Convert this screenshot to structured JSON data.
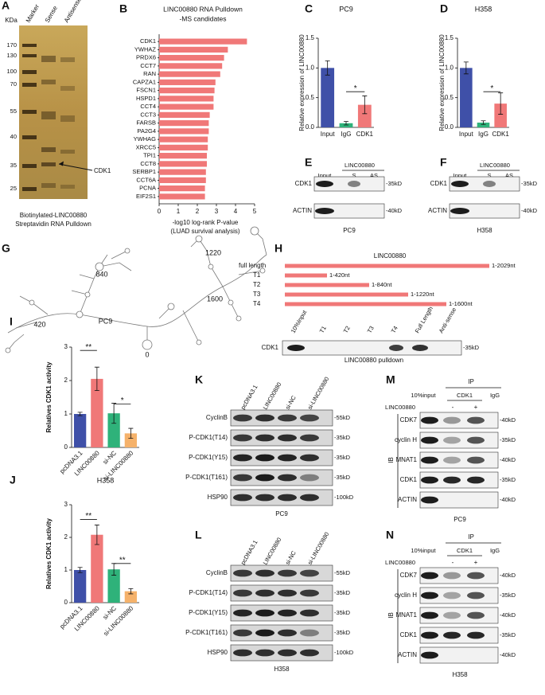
{
  "chart_data": [
    {
      "letter": "B",
      "type": "hbar",
      "title": "LINC00880 RNA Pulldown",
      "subtitle": "-MS candidates",
      "categories": [
        "CDK1",
        "YWHAZ",
        "PRDX6",
        "CCT7",
        "RAN",
        "CAPZA1",
        "FSCN1",
        "HSPD1",
        "CCT4",
        "CCT3",
        "FARSB",
        "PA2G4",
        "YWHAG",
        "XRCC5",
        "TPI1",
        "CCT8",
        "SERBP1",
        "CCT6A",
        "PCNA",
        "EIF2S1"
      ],
      "values": [
        4.6,
        3.6,
        3.4,
        3.3,
        3.2,
        2.95,
        2.9,
        2.85,
        2.85,
        2.65,
        2.6,
        2.6,
        2.55,
        2.55,
        2.5,
        2.5,
        2.45,
        2.45,
        2.4,
        2.4
      ],
      "color": "#f07878",
      "xlim": [
        0,
        5
      ],
      "xticks": [
        0,
        1,
        2,
        3,
        4,
        5
      ],
      "xlabel": "-log10 log-rank P-value",
      "xlabel_note": "(LUAD survival analysis)"
    },
    {
      "letter": "C",
      "type": "bar",
      "title": "PC9",
      "ylabel": "Relative expression of LINC00880",
      "categories": [
        "Input",
        "IgG",
        "CDK1"
      ],
      "values": [
        1.0,
        0.07,
        0.38
      ],
      "errors": [
        0.12,
        0.03,
        0.15
      ],
      "colors": [
        "#3f50a8",
        "#2fb27a",
        "#f07878"
      ],
      "ylim": [
        0,
        1.5
      ],
      "yticks": [
        {
          "value": 0,
          "label": "0.0"
        },
        0.5,
        {
          "value": 1,
          "label": "1.0"
        },
        1.5
      ],
      "annotations": [
        "*"
      ]
    },
    {
      "letter": "D",
      "type": "bar",
      "title": "H358",
      "ylabel": "Relative expression of LINC00880",
      "categories": [
        "Input",
        "IgG",
        "CDK1"
      ],
      "values": [
        1.0,
        0.08,
        0.4
      ],
      "errors": [
        0.1,
        0.03,
        0.18
      ],
      "colors": [
        "#3f50a8",
        "#2fb27a",
        "#f07878"
      ],
      "ylim": [
        0,
        1.5
      ],
      "yticks": [
        {
          "value": 0,
          "label": "0.0"
        },
        0.5,
        {
          "value": 1,
          "label": "1.0"
        },
        1.5
      ],
      "annotations": [
        "*"
      ]
    },
    {
      "letter": "I",
      "type": "bar",
      "title": "PC9",
      "ylabel": "Relatives CDK1 activity",
      "categories": [
        "pcDNA3.1",
        "LINC00880",
        "si-NC",
        "si-LINC00880"
      ],
      "values": [
        1.0,
        2.05,
        1.02,
        0.42
      ],
      "errors": [
        0.05,
        0.35,
        0.3,
        0.15
      ],
      "colors": [
        "#3f50a8",
        "#f07878",
        "#2fb27a",
        "#f5b26b"
      ],
      "ylim": [
        0,
        3
      ],
      "yticks": [
        0,
        1,
        2,
        3
      ],
      "annotations": [
        "**",
        "*"
      ]
    },
    {
      "letter": "J",
      "type": "bar",
      "title": "H358",
      "ylabel": "Relatives CDK1 activity",
      "categories": [
        "pcDNA3.1",
        "LINC00880",
        "si-NC",
        "si-LINC00880"
      ],
      "values": [
        1.0,
        2.08,
        1.02,
        0.35
      ],
      "errors": [
        0.08,
        0.3,
        0.18,
        0.08
      ],
      "colors": [
        "#3f50a8",
        "#f07878",
        "#2fb27a",
        "#f5b26b"
      ],
      "ylim": [
        0,
        3
      ],
      "yticks": [
        0,
        1,
        2,
        3
      ],
      "annotations": [
        "**",
        "**"
      ]
    }
  ],
  "panels": {
    "A": {
      "letter": "A",
      "unit": "KDa",
      "lanes": [
        "Marker",
        "Sense",
        "Antisense"
      ],
      "ladder": [
        170,
        130,
        100,
        70,
        55,
        40,
        35,
        25
      ],
      "arrow_label": "CDK1",
      "caption": [
        "Biotinylated-LINC00880",
        "Streptavidin RNA Pulldown"
      ]
    },
    "E": {
      "letter": "E",
      "group": "LINC00880",
      "lanes": [
        "Input",
        "S",
        "AS"
      ],
      "rows": [
        "CDK1",
        "ACTIN"
      ],
      "sizes": [
        "-35kD",
        "-40kD"
      ],
      "cell": "PC9"
    },
    "F": {
      "letter": "F",
      "group": "LINC00880",
      "lanes": [
        "Input",
        "S",
        "AS"
      ],
      "rows": [
        "CDK1",
        "ACTIN"
      ],
      "sizes": [
        "-35kD",
        "-40kD"
      ],
      "cell": "H358"
    },
    "G": {
      "letter": "G",
      "positions": [
        840,
        1220,
        1600,
        420,
        0
      ]
    },
    "H": {
      "letter": "H",
      "title": "LINC00880",
      "constructs": [
        {
          "name": "full length",
          "range": "1-2029nt"
        },
        {
          "name": "T1",
          "range": "1-420nt"
        },
        {
          "name": "T2",
          "range": "1-840nt"
        },
        {
          "name": "T3",
          "range": "1-1220nt"
        },
        {
          "name": "T4",
          "range": "1-1600nt"
        }
      ],
      "lanes": [
        "10%Input",
        "T1",
        "T2",
        "T3",
        "T4",
        "Full Length",
        "Anti-sense"
      ],
      "row": "CDK1",
      "size": "-35kD",
      "caption": "LINC00880 pulldown"
    },
    "K": {
      "letter": "K",
      "lanes": [
        "pcDNA3.1",
        "LINC00880",
        "si-NC",
        "si-LINC00880"
      ],
      "rows": [
        "CyclinB",
        "P-CDK1(T14)",
        "P-CDK1(Y15)",
        "P-CDK1(T161)",
        "HSP90"
      ],
      "sizes": [
        "-55kD",
        "-35kD",
        "-35kD",
        "-35kD",
        "-100kD"
      ],
      "cell": "PC9"
    },
    "L": {
      "letter": "L",
      "lanes": [
        "pcDNA3.1",
        "LINC00880",
        "si-NC",
        "si-LINC00880"
      ],
      "rows": [
        "CyclinB",
        "P-CDK1(T14)",
        "P-CDK1(Y15)",
        "P-CDK1(T161)",
        "HSP90"
      ],
      "sizes": [
        "-55kD",
        "-35kD",
        "-35kD",
        "-35kD",
        "-100kD"
      ],
      "cell": "H358"
    },
    "M": {
      "letter": "M",
      "group": "IP",
      "input": "10%input",
      "ip": "CDK1",
      "igg": "IgG",
      "treatment": "LINC00880",
      "signs": [
        "-",
        "+"
      ],
      "axis": "IB",
      "rows": [
        "CDK7",
        "cyclin H",
        "MNAT1",
        "CDK1",
        "ACTIN"
      ],
      "sizes": [
        "-40kD",
        "-35kD",
        "-40kD",
        "-35kD",
        "-40kD"
      ],
      "cell": "PC9"
    },
    "N": {
      "letter": "N",
      "group": "IP",
      "input": "10%input",
      "ip": "CDK1",
      "igg": "IgG",
      "treatment": "LINC00880",
      "signs": [
        "-",
        "+"
      ],
      "axis": "IB",
      "rows": [
        "CDK7",
        "cyclin H",
        "MNAT1",
        "CDK1",
        "ACTIN"
      ],
      "sizes": [
        "-40kD",
        "-35kD",
        "-40kD",
        "-35kD",
        "-40kD"
      ],
      "cell": "H358"
    }
  }
}
